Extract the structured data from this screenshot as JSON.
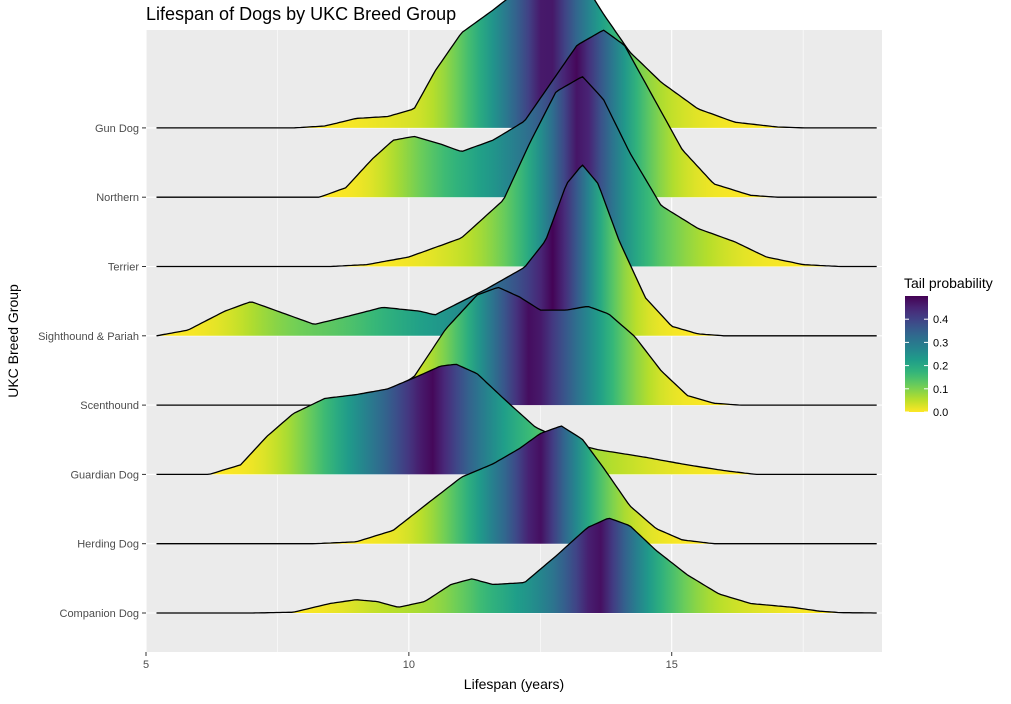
{
  "chart_data": {
    "type": "ridgeline",
    "title": "Lifespan of Dogs by UKC Breed Group",
    "xlabel": "Lifespan (years)",
    "ylabel": "UKC Breed Group",
    "xlim": [
      5.0,
      19.0
    ],
    "x_ticks": [
      5,
      10,
      15
    ],
    "fill": "tail probability (viridis, reversed)",
    "legend": {
      "title": "Tail probability",
      "position": "right",
      "ticks": [
        0.0,
        0.1,
        0.2,
        0.3,
        0.4
      ],
      "tick_labels": [
        "0.0",
        "0.1",
        "0.2",
        "0.3",
        "0.4"
      ],
      "range": [
        0.0,
        0.5
      ]
    },
    "grid": true,
    "series": [
      {
        "name": "Companion Dog",
        "density": [
          [
            5.2,
            0
          ],
          [
            7,
            0
          ],
          [
            7.8,
            0.004
          ],
          [
            8.5,
            0.05
          ],
          [
            9,
            0.07
          ],
          [
            9.4,
            0.06
          ],
          [
            9.8,
            0.03
          ],
          [
            10.3,
            0.06
          ],
          [
            10.8,
            0.15
          ],
          [
            11.2,
            0.18
          ],
          [
            11.6,
            0.15
          ],
          [
            12.2,
            0.16
          ],
          [
            12.8,
            0.3
          ],
          [
            13.4,
            0.45
          ],
          [
            13.8,
            0.5
          ],
          [
            14.2,
            0.46
          ],
          [
            14.7,
            0.33
          ],
          [
            15.3,
            0.2
          ],
          [
            15.9,
            0.1
          ],
          [
            16.5,
            0.05
          ],
          [
            17.3,
            0.03
          ],
          [
            17.8,
            0.01
          ],
          [
            18.2,
            0.002
          ],
          [
            18.9,
            0
          ]
        ]
      },
      {
        "name": "Herding Dog",
        "density": [
          [
            5.2,
            0
          ],
          [
            8.2,
            0
          ],
          [
            9,
            0.01
          ],
          [
            9.7,
            0.07
          ],
          [
            10.3,
            0.2
          ],
          [
            11,
            0.35
          ],
          [
            11.6,
            0.42
          ],
          [
            12.1,
            0.5
          ],
          [
            12.5,
            0.58
          ],
          [
            12.9,
            0.62
          ],
          [
            13.3,
            0.55
          ],
          [
            13.7,
            0.4
          ],
          [
            14.2,
            0.2
          ],
          [
            14.7,
            0.08
          ],
          [
            15.2,
            0.02
          ],
          [
            15.8,
            0
          ],
          [
            18.9,
            0
          ]
        ]
      },
      {
        "name": "Guardian Dog",
        "density": [
          [
            5.2,
            0
          ],
          [
            6.2,
            0
          ],
          [
            6.8,
            0.05
          ],
          [
            7.3,
            0.2
          ],
          [
            7.8,
            0.32
          ],
          [
            8.4,
            0.4
          ],
          [
            9,
            0.42
          ],
          [
            9.6,
            0.45
          ],
          [
            10.2,
            0.52
          ],
          [
            10.6,
            0.57
          ],
          [
            10.9,
            0.58
          ],
          [
            11.3,
            0.53
          ],
          [
            11.8,
            0.4
          ],
          [
            12.4,
            0.25
          ],
          [
            13,
            0.17
          ],
          [
            13.6,
            0.13
          ],
          [
            14.5,
            0.09
          ],
          [
            15.3,
            0.05
          ],
          [
            16,
            0.02
          ],
          [
            16.6,
            0
          ],
          [
            18.9,
            0
          ]
        ]
      },
      {
        "name": "Scenthound",
        "density": [
          [
            5.2,
            0
          ],
          [
            8.8,
            0
          ],
          [
            9.4,
            0.03
          ],
          [
            10.1,
            0.15
          ],
          [
            10.7,
            0.4
          ],
          [
            11.3,
            0.58
          ],
          [
            11.7,
            0.62
          ],
          [
            12.1,
            0.57
          ],
          [
            12.5,
            0.5
          ],
          [
            13,
            0.5
          ],
          [
            13.4,
            0.52
          ],
          [
            13.8,
            0.48
          ],
          [
            14.3,
            0.36
          ],
          [
            14.8,
            0.18
          ],
          [
            15.3,
            0.05
          ],
          [
            15.8,
            0.01
          ],
          [
            16.3,
            0
          ],
          [
            18.9,
            0
          ]
        ]
      },
      {
        "name": "Sighthound & Pariah",
        "density": [
          [
            5.2,
            0
          ],
          [
            5.8,
            0.03
          ],
          [
            6.5,
            0.13
          ],
          [
            7,
            0.18
          ],
          [
            7.5,
            0.13
          ],
          [
            8.2,
            0.06
          ],
          [
            8.8,
            0.1
          ],
          [
            9.5,
            0.15
          ],
          [
            10.2,
            0.13
          ],
          [
            10.5,
            0.11
          ],
          [
            11.5,
            0.25
          ],
          [
            12.2,
            0.36
          ],
          [
            12.6,
            0.5
          ],
          [
            13,
            0.8
          ],
          [
            13.3,
            0.9
          ],
          [
            13.6,
            0.8
          ],
          [
            14,
            0.5
          ],
          [
            14.5,
            0.2
          ],
          [
            15,
            0.05
          ],
          [
            15.5,
            0.01
          ],
          [
            16,
            0
          ],
          [
            18.9,
            0
          ]
        ]
      },
      {
        "name": "Terrier",
        "density": [
          [
            5.2,
            0
          ],
          [
            8.5,
            0
          ],
          [
            9.2,
            0.01
          ],
          [
            10,
            0.05
          ],
          [
            11,
            0.15
          ],
          [
            11.8,
            0.35
          ],
          [
            12.3,
            0.65
          ],
          [
            12.8,
            0.92
          ],
          [
            13.3,
            1.0
          ],
          [
            13.7,
            0.88
          ],
          [
            14.2,
            0.6
          ],
          [
            14.8,
            0.32
          ],
          [
            15.5,
            0.2
          ],
          [
            16.2,
            0.13
          ],
          [
            16.8,
            0.05
          ],
          [
            17.5,
            0.01
          ],
          [
            18.2,
            0
          ],
          [
            18.9,
            0
          ]
        ]
      },
      {
        "name": "Northern",
        "density": [
          [
            5.2,
            0
          ],
          [
            8.3,
            0
          ],
          [
            8.8,
            0.05
          ],
          [
            9.3,
            0.2
          ],
          [
            9.7,
            0.3
          ],
          [
            10.1,
            0.32
          ],
          [
            10.6,
            0.28
          ],
          [
            11,
            0.24
          ],
          [
            11.6,
            0.3
          ],
          [
            12.2,
            0.4
          ],
          [
            12.7,
            0.6
          ],
          [
            13.2,
            0.8
          ],
          [
            13.7,
            0.88
          ],
          [
            14.1,
            0.8
          ],
          [
            14.6,
            0.55
          ],
          [
            15.2,
            0.25
          ],
          [
            15.8,
            0.07
          ],
          [
            16.5,
            0.01
          ],
          [
            17,
            0
          ],
          [
            18.9,
            0
          ]
        ]
      },
      {
        "name": "Gun Dog",
        "density": [
          [
            5.2,
            0
          ],
          [
            7.8,
            0
          ],
          [
            8.4,
            0.01
          ],
          [
            9,
            0.05
          ],
          [
            9.6,
            0.06
          ],
          [
            10.1,
            0.1
          ],
          [
            10.5,
            0.3
          ],
          [
            11,
            0.5
          ],
          [
            11.6,
            0.62
          ],
          [
            12.2,
            0.75
          ],
          [
            12.7,
            0.88
          ],
          [
            13.2,
            0.82
          ],
          [
            13.7,
            0.6
          ],
          [
            14.2,
            0.4
          ],
          [
            14.8,
            0.24
          ],
          [
            15.5,
            0.1
          ],
          [
            16.2,
            0.03
          ],
          [
            17,
            0.005
          ],
          [
            17.5,
            0
          ],
          [
            18.9,
            0
          ]
        ]
      }
    ]
  }
}
